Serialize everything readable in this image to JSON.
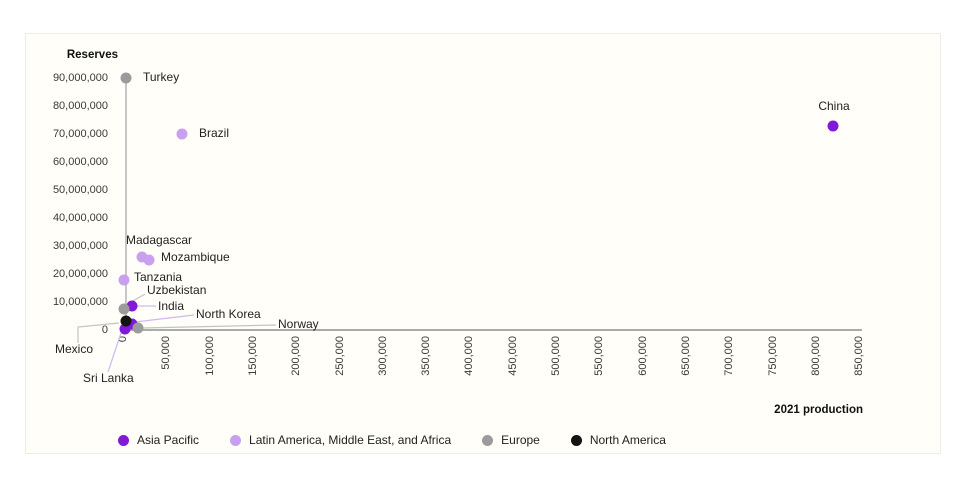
{
  "card": {
    "background": "#fffef8",
    "border_color": "#eeece4"
  },
  "chart_data": {
    "type": "scatter",
    "title": "",
    "xlabel": "2021 production",
    "ylabel": "Reserves",
    "xlim": [
      0,
      850000
    ],
    "ylim": [
      0,
      90000000
    ],
    "grid": false,
    "legend_position": "bottom",
    "x_ticks": [
      "0",
      "50,000",
      "100,000",
      "150,000",
      "200,000",
      "250,000",
      "300,000",
      "350,000",
      "400,000",
      "450,000",
      "500,000",
      "550,000",
      "600,000",
      "650,000",
      "700,000",
      "750,000",
      "800,000",
      "850,000"
    ],
    "y_ticks": [
      "90,000,000",
      "80,000,000",
      "70,000,000",
      "60,000,000",
      "50,000,000",
      "40,000,000",
      "30,000,000",
      "20,000,000",
      "10,000,000",
      "0"
    ],
    "legend": [
      {
        "id": "asia-pacific",
        "label": "Asia Pacific",
        "color": "#8119d6"
      },
      {
        "id": "latam-mea",
        "label": "Latin America, Middle East, and Africa",
        "color": "#c9a0ef"
      },
      {
        "id": "europe",
        "label": "Europe",
        "color": "#9b9b9b"
      },
      {
        "id": "north-america",
        "label": "North America",
        "color": "#141414"
      }
    ],
    "points": [
      {
        "name": "Madagascar",
        "region": "latam-mea",
        "production": 22000,
        "reserves": 26000000
      },
      {
        "name": "Mozambique",
        "region": "latam-mea",
        "production": 30000,
        "reserves": 25000000
      },
      {
        "name": "Tanzania",
        "region": "latam-mea",
        "production": 1200,
        "reserves": 18000000
      },
      {
        "name": "Brazil",
        "region": "latam-mea",
        "production": 68000,
        "reserves": 70000000
      },
      {
        "name": "Turkey",
        "region": "europe",
        "production": 3000,
        "reserves": 90000000
      },
      {
        "name": "China",
        "region": "asia-pacific",
        "production": 820000,
        "reserves": 73000000
      },
      {
        "name": "India",
        "region": "asia-pacific",
        "production": 10000,
        "reserves": 8600000
      },
      {
        "name": "Uzbekistan",
        "region": "europe",
        "production": 1000,
        "reserves": 7600000
      },
      {
        "name": "North Korea",
        "region": "asia-pacific",
        "production": 10000,
        "reserves": 2000000
      },
      {
        "name": "Sri Lanka",
        "region": "asia-pacific",
        "production": 2000,
        "reserves": 300000
      },
      {
        "name": "Mexico",
        "region": "north-america",
        "production": 3000,
        "reserves": 3100000
      },
      {
        "name": "Norway",
        "region": "europe",
        "production": 17000,
        "reserves": 600000
      }
    ]
  }
}
